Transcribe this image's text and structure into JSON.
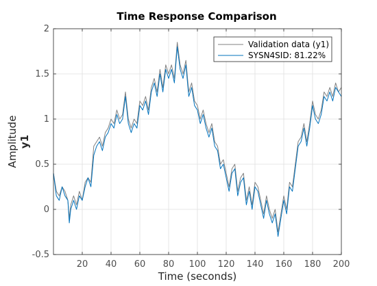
{
  "chart_data": {
    "type": "line",
    "title": "Time Response Comparison",
    "xlabel": "Time (seconds)",
    "ylabel": "Amplitude",
    "ylabel2": "y1",
    "xlim": [
      0,
      200
    ],
    "ylim": [
      -0.5,
      2
    ],
    "xticks": [
      20,
      40,
      60,
      80,
      100,
      120,
      140,
      160,
      180,
      200
    ],
    "yticks": [
      -0.5,
      0,
      0.5,
      1,
      1.5,
      2
    ],
    "grid": true,
    "legend": "top-right",
    "series": [
      {
        "name": "Validation data (y1)",
        "color": "#808080",
        "x": [
          0,
          2,
          4,
          6,
          8,
          10,
          11,
          12,
          14,
          16,
          18,
          20,
          22,
          24,
          26,
          28,
          30,
          32,
          34,
          36,
          38,
          40,
          42,
          44,
          46,
          48,
          50,
          52,
          54,
          56,
          58,
          60,
          62,
          64,
          66,
          68,
          70,
          72,
          74,
          76,
          78,
          80,
          82,
          84,
          86,
          88,
          90,
          92,
          94,
          96,
          98,
          100,
          102,
          104,
          106,
          108,
          110,
          112,
          114,
          116,
          118,
          120,
          122,
          124,
          126,
          128,
          130,
          132,
          134,
          136,
          138,
          140,
          142,
          144,
          146,
          148,
          150,
          152,
          154,
          156,
          158,
          160,
          162,
          164,
          166,
          168,
          170,
          172,
          174,
          176,
          178,
          180,
          182,
          184,
          186,
          188,
          190,
          192,
          194,
          196,
          198,
          200
        ],
        "y": [
          0.4,
          0.2,
          0.15,
          0.25,
          0.2,
          0.1,
          -0.1,
          0.05,
          0.15,
          0.05,
          0.2,
          0.1,
          0.3,
          0.35,
          0.3,
          0.7,
          0.75,
          0.8,
          0.7,
          0.85,
          0.9,
          1.0,
          0.95,
          1.1,
          1.0,
          1.05,
          1.3,
          1.0,
          0.9,
          1.0,
          0.95,
          1.2,
          1.15,
          1.25,
          1.1,
          1.35,
          1.45,
          1.3,
          1.55,
          1.35,
          1.6,
          1.5,
          1.6,
          1.45,
          1.85,
          1.6,
          1.5,
          1.65,
          1.3,
          1.4,
          1.2,
          1.15,
          1.0,
          1.1,
          0.95,
          0.85,
          0.95,
          0.75,
          0.7,
          0.5,
          0.55,
          0.4,
          0.25,
          0.45,
          0.5,
          0.2,
          0.35,
          0.4,
          0.1,
          0.25,
          0.05,
          0.3,
          0.25,
          0.1,
          -0.05,
          0.15,
          0.0,
          -0.1,
          0.0,
          -0.25,
          -0.05,
          0.15,
          0.0,
          0.3,
          0.25,
          0.5,
          0.75,
          0.8,
          0.95,
          0.75,
          0.95,
          1.2,
          1.05,
          1.0,
          1.1,
          1.3,
          1.25,
          1.35,
          1.25,
          1.4,
          1.3,
          1.35
        ]
      },
      {
        "name": "SYSN4SID: 81.22%",
        "color": "#0072bd",
        "x": [
          0,
          2,
          4,
          6,
          8,
          10,
          11,
          12,
          14,
          16,
          18,
          20,
          22,
          24,
          26,
          28,
          30,
          32,
          34,
          36,
          38,
          40,
          42,
          44,
          46,
          48,
          50,
          52,
          54,
          56,
          58,
          60,
          62,
          64,
          66,
          68,
          70,
          72,
          74,
          76,
          78,
          80,
          82,
          84,
          86,
          88,
          90,
          92,
          94,
          96,
          98,
          100,
          102,
          104,
          106,
          108,
          110,
          112,
          114,
          116,
          118,
          120,
          122,
          124,
          126,
          128,
          130,
          132,
          134,
          136,
          138,
          140,
          142,
          144,
          146,
          148,
          150,
          152,
          154,
          156,
          158,
          160,
          162,
          164,
          166,
          168,
          170,
          172,
          174,
          176,
          178,
          180,
          182,
          184,
          186,
          188,
          190,
          192,
          194,
          196,
          198,
          200
        ],
        "y": [
          0.4,
          0.15,
          0.1,
          0.25,
          0.15,
          0.1,
          -0.15,
          0.0,
          0.1,
          0.0,
          0.15,
          0.1,
          0.25,
          0.35,
          0.25,
          0.6,
          0.7,
          0.75,
          0.65,
          0.8,
          0.85,
          0.95,
          0.9,
          1.05,
          0.95,
          1.0,
          1.25,
          0.95,
          0.85,
          0.95,
          0.9,
          1.15,
          1.1,
          1.2,
          1.05,
          1.3,
          1.4,
          1.25,
          1.5,
          1.3,
          1.55,
          1.45,
          1.55,
          1.4,
          1.8,
          1.55,
          1.45,
          1.6,
          1.25,
          1.35,
          1.15,
          1.1,
          0.95,
          1.05,
          0.9,
          0.8,
          0.9,
          0.7,
          0.65,
          0.45,
          0.5,
          0.35,
          0.2,
          0.4,
          0.45,
          0.15,
          0.3,
          0.35,
          0.05,
          0.2,
          0.0,
          0.25,
          0.2,
          0.05,
          -0.1,
          0.1,
          -0.05,
          -0.15,
          -0.05,
          -0.3,
          -0.1,
          0.1,
          -0.05,
          0.25,
          0.2,
          0.45,
          0.7,
          0.75,
          0.9,
          0.7,
          0.9,
          1.15,
          1.0,
          0.95,
          1.05,
          1.25,
          1.2,
          1.3,
          1.2,
          1.35,
          1.3,
          1.25
        ]
      }
    ]
  }
}
